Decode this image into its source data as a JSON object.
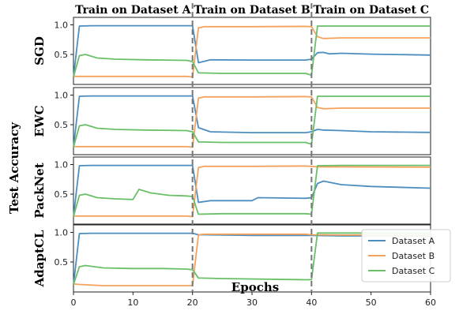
{
  "chart_data": {
    "type": "line",
    "phase_titles": [
      "Train on Dataset A",
      "Train on Dataset B",
      "Train on Dataset C"
    ],
    "phase_boundaries": [
      20,
      40
    ],
    "xlabel": "Epochs",
    "ylabel": "Test Accuracy",
    "xlim": [
      0,
      60
    ],
    "x_ticks": [
      0,
      10,
      20,
      30,
      40,
      50,
      60
    ],
    "ylim": [
      0.1,
      1.02
    ],
    "y_ticks": [
      0.5,
      1.0
    ],
    "legend": {
      "placement": "bottom-right",
      "entries": [
        "Dataset A",
        "Dataset B",
        "Dataset C"
      ]
    },
    "colors": {
      "Dataset A": "#4c8ebf",
      "Dataset B": "#f5a25d",
      "Dataset C": "#6abf69"
    },
    "panels": [
      {
        "label": "SGD",
        "series": [
          {
            "name": "Dataset A",
            "points": [
              [
                0,
                0.12
              ],
              [
                1,
                0.98
              ],
              [
                3,
                0.985
              ],
              [
                10,
                0.985
              ],
              [
                19,
                0.985
              ],
              [
                20,
                0.985
              ],
              [
                21,
                0.36
              ],
              [
                23,
                0.41
              ],
              [
                30,
                0.405
              ],
              [
                39,
                0.405
              ],
              [
                40,
                0.42
              ],
              [
                41,
                0.53
              ],
              [
                42,
                0.535
              ],
              [
                43,
                0.51
              ],
              [
                45,
                0.52
              ],
              [
                50,
                0.505
              ],
              [
                60,
                0.49
              ]
            ]
          },
          {
            "name": "Dataset B",
            "points": [
              [
                0,
                0.13
              ],
              [
                1,
                0.13
              ],
              [
                19,
                0.13
              ],
              [
                20,
                0.12
              ],
              [
                21,
                0.95
              ],
              [
                22,
                0.97
              ],
              [
                30,
                0.97
              ],
              [
                39,
                0.975
              ],
              [
                40,
                0.97
              ],
              [
                41,
                0.8
              ],
              [
                42,
                0.77
              ],
              [
                45,
                0.78
              ],
              [
                50,
                0.78
              ],
              [
                60,
                0.78
              ]
            ]
          },
          {
            "name": "Dataset C",
            "points": [
              [
                0,
                0.12
              ],
              [
                1,
                0.48
              ],
              [
                2,
                0.5
              ],
              [
                4,
                0.44
              ],
              [
                7,
                0.42
              ],
              [
                12,
                0.41
              ],
              [
                19,
                0.4
              ],
              [
                20,
                0.38
              ],
              [
                21,
                0.19
              ],
              [
                25,
                0.18
              ],
              [
                39,
                0.18
              ],
              [
                40,
                0.15
              ],
              [
                41,
                0.98
              ],
              [
                45,
                0.98
              ],
              [
                60,
                0.98
              ]
            ]
          }
        ]
      },
      {
        "label": "EWC",
        "series": [
          {
            "name": "Dataset A",
            "points": [
              [
                0,
                0.12
              ],
              [
                1,
                0.98
              ],
              [
                3,
                0.985
              ],
              [
                10,
                0.985
              ],
              [
                19,
                0.985
              ],
              [
                20,
                0.985
              ],
              [
                21,
                0.45
              ],
              [
                23,
                0.38
              ],
              [
                30,
                0.365
              ],
              [
                39,
                0.365
              ],
              [
                40,
                0.38
              ],
              [
                41,
                0.42
              ],
              [
                42,
                0.41
              ],
              [
                45,
                0.4
              ],
              [
                50,
                0.38
              ],
              [
                60,
                0.37
              ]
            ]
          },
          {
            "name": "Dataset B",
            "points": [
              [
                0,
                0.13
              ],
              [
                1,
                0.13
              ],
              [
                19,
                0.13
              ],
              [
                20,
                0.12
              ],
              [
                21,
                0.95
              ],
              [
                22,
                0.97
              ],
              [
                30,
                0.97
              ],
              [
                39,
                0.975
              ],
              [
                40,
                0.97
              ],
              [
                41,
                0.79
              ],
              [
                42,
                0.77
              ],
              [
                45,
                0.78
              ],
              [
                50,
                0.78
              ],
              [
                60,
                0.78
              ]
            ]
          },
          {
            "name": "Dataset C",
            "points": [
              [
                0,
                0.12
              ],
              [
                1,
                0.48
              ],
              [
                2,
                0.5
              ],
              [
                4,
                0.44
              ],
              [
                7,
                0.42
              ],
              [
                12,
                0.41
              ],
              [
                19,
                0.4
              ],
              [
                20,
                0.38
              ],
              [
                21,
                0.21
              ],
              [
                25,
                0.2
              ],
              [
                39,
                0.2
              ],
              [
                40,
                0.17
              ],
              [
                41,
                0.98
              ],
              [
                45,
                0.98
              ],
              [
                60,
                0.98
              ]
            ]
          }
        ]
      },
      {
        "label": "PackNet",
        "series": [
          {
            "name": "Dataset A",
            "points": [
              [
                0,
                0.12
              ],
              [
                1,
                0.98
              ],
              [
                3,
                0.985
              ],
              [
                10,
                0.985
              ],
              [
                19,
                0.985
              ],
              [
                20,
                0.985
              ],
              [
                21,
                0.36
              ],
              [
                23,
                0.39
              ],
              [
                30,
                0.39
              ],
              [
                31,
                0.44
              ],
              [
                39,
                0.43
              ],
              [
                40,
                0.44
              ],
              [
                41,
                0.68
              ],
              [
                42,
                0.72
              ],
              [
                45,
                0.66
              ],
              [
                50,
                0.63
              ],
              [
                60,
                0.6
              ]
            ]
          },
          {
            "name": "Dataset B",
            "points": [
              [
                0,
                0.13
              ],
              [
                1,
                0.13
              ],
              [
                19,
                0.13
              ],
              [
                20,
                0.12
              ],
              [
                21,
                0.95
              ],
              [
                22,
                0.97
              ],
              [
                30,
                0.97
              ],
              [
                39,
                0.975
              ],
              [
                40,
                0.97
              ],
              [
                41,
                0.96
              ],
              [
                45,
                0.96
              ],
              [
                60,
                0.955
              ]
            ]
          },
          {
            "name": "Dataset C",
            "points": [
              [
                0,
                0.12
              ],
              [
                1,
                0.48
              ],
              [
                2,
                0.5
              ],
              [
                4,
                0.44
              ],
              [
                7,
                0.42
              ],
              [
                10,
                0.41
              ],
              [
                11,
                0.58
              ],
              [
                13,
                0.52
              ],
              [
                16,
                0.48
              ],
              [
                19,
                0.47
              ],
              [
                20,
                0.46
              ],
              [
                21,
                0.16
              ],
              [
                25,
                0.17
              ],
              [
                39,
                0.17
              ],
              [
                40,
                0.16
              ],
              [
                41,
                0.98
              ],
              [
                45,
                0.985
              ],
              [
                60,
                0.985
              ]
            ]
          }
        ]
      },
      {
        "label": "AdaptCL",
        "series": [
          {
            "name": "Dataset A",
            "points": [
              [
                0,
                0.12
              ],
              [
                1,
                0.98
              ],
              [
                3,
                0.985
              ],
              [
                10,
                0.985
              ],
              [
                19,
                0.985
              ],
              [
                20,
                0.985
              ],
              [
                21,
                0.96
              ],
              [
                30,
                0.95
              ],
              [
                39,
                0.95
              ],
              [
                40,
                0.95
              ],
              [
                45,
                0.94
              ],
              [
                60,
                0.94
              ]
            ]
          },
          {
            "name": "Dataset B",
            "points": [
              [
                0,
                0.13
              ],
              [
                1,
                0.12
              ],
              [
                5,
                0.1
              ],
              [
                19,
                0.1
              ],
              [
                20,
                0.1
              ],
              [
                21,
                0.96
              ],
              [
                22,
                0.97
              ],
              [
                30,
                0.97
              ],
              [
                39,
                0.97
              ],
              [
                40,
                0.96
              ],
              [
                45,
                0.955
              ],
              [
                60,
                0.955
              ]
            ]
          },
          {
            "name": "Dataset C",
            "points": [
              [
                0,
                0.12
              ],
              [
                1,
                0.42
              ],
              [
                2,
                0.44
              ],
              [
                5,
                0.4
              ],
              [
                10,
                0.39
              ],
              [
                15,
                0.39
              ],
              [
                19,
                0.38
              ],
              [
                20,
                0.37
              ],
              [
                21,
                0.23
              ],
              [
                25,
                0.22
              ],
              [
                39,
                0.2
              ],
              [
                40,
                0.2
              ],
              [
                41,
                0.99
              ],
              [
                45,
                0.99
              ],
              [
                60,
                0.99
              ]
            ]
          }
        ]
      }
    ]
  }
}
